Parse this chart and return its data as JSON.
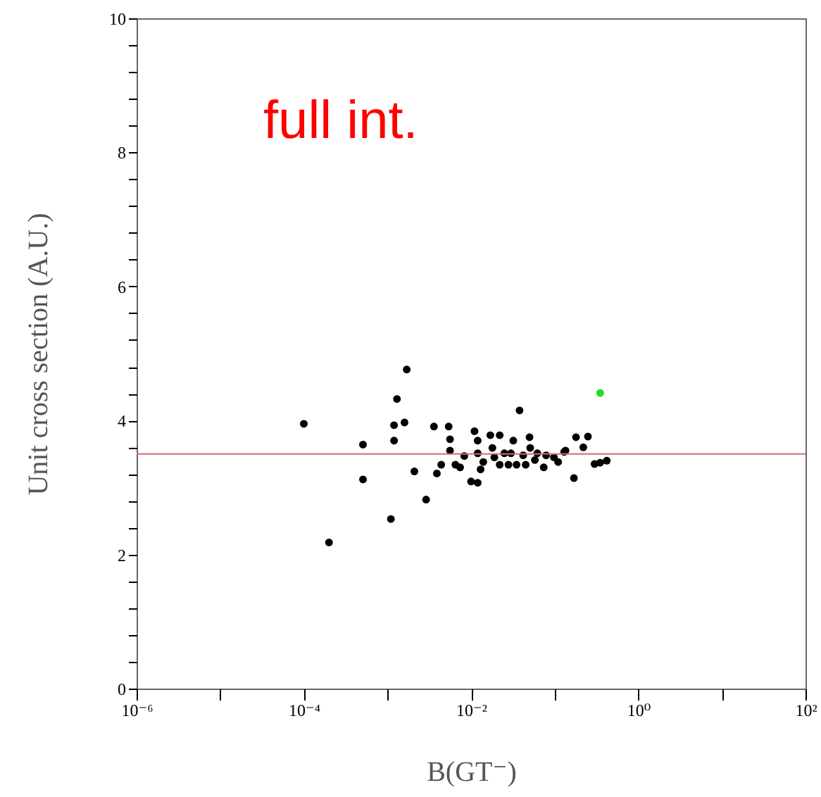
{
  "chart_data": {
    "type": "scatter",
    "xlabel": "B(GT⁻)",
    "ylabel": "Unit cross section (A.U.)",
    "annotations": [
      "full int."
    ],
    "log": "x",
    "xlim": [
      1e-06,
      100
    ],
    "ylim": [
      0,
      10
    ],
    "xticks": [
      {
        "value": 1e-06,
        "label": "10⁻⁶"
      },
      {
        "value": 1e-05,
        "label": null
      },
      {
        "value": 0.0001,
        "label": "10⁻⁴"
      },
      {
        "value": 0.001,
        "label": null
      },
      {
        "value": 0.01,
        "label": "10⁻²"
      },
      {
        "value": 0.1,
        "label": null
      },
      {
        "value": 1,
        "label": "10⁰"
      },
      {
        "value": 10,
        "label": null
      },
      {
        "value": 100,
        "label": "10²"
      }
    ],
    "yticks": [
      0,
      {
        "value": 0.4,
        "label": null
      },
      {
        "value": 0.8,
        "label": null
      },
      {
        "value": 1.2,
        "label": null
      },
      {
        "value": 1.6,
        "label": null
      },
      2,
      {
        "value": 2.4,
        "label": null
      },
      {
        "value": 2.8,
        "label": null
      },
      {
        "value": 3.2,
        "label": null
      },
      {
        "value": 3.6,
        "label": null
      },
      4,
      {
        "value": 4.4,
        "label": null
      },
      {
        "value": 4.8,
        "label": null
      },
      {
        "value": 5.2,
        "label": null
      },
      {
        "value": 5.6,
        "label": null
      },
      6,
      {
        "value": 6.4,
        "label": null
      },
      {
        "value": 6.8,
        "label": null
      },
      {
        "value": 7.2,
        "label": null
      },
      {
        "value": 7.6,
        "label": null
      },
      8,
      {
        "value": 8.4,
        "label": null
      },
      {
        "value": 8.8,
        "label": null
      },
      {
        "value": 9.2,
        "label": null
      },
      {
        "value": 9.6,
        "label": null
      },
      10
    ],
    "grid": false,
    "marker": "circle",
    "ref_lines": [
      {
        "axis": "y",
        "value": 3.5,
        "color": "#d96a6a"
      }
    ],
    "series": [
      {
        "color": "#000000",
        "x": [
          0.0001,
          0.0002,
          0.00051,
          0.00051,
          0.0011,
          0.0012,
          0.0012,
          0.0013,
          0.0016,
          0.0017,
          0.0021,
          0.0029,
          0.0036,
          0.0039,
          0.0044,
          0.0054,
          0.0056,
          0.0056,
          0.0065,
          0.0074,
          0.0083,
          0.01,
          0.012,
          0.011,
          0.012,
          0.012,
          0.013,
          0.014,
          0.017,
          0.018,
          0.019,
          0.022,
          0.022,
          0.025,
          0.028,
          0.03,
          0.032,
          0.035,
          0.038,
          0.042,
          0.045,
          0.05,
          0.051,
          0.058,
          0.062,
          0.074,
          0.079,
          0.098,
          0.11,
          0.13,
          0.135,
          0.17,
          0.18,
          0.22,
          0.25,
          0.3,
          0.35,
          0.42
        ],
        "values": [
          3.95,
          2.18,
          3.64,
          3.12,
          2.53,
          3.93,
          3.7,
          4.32,
          3.97,
          4.76,
          3.24,
          2.82,
          3.91,
          3.21,
          3.34,
          3.91,
          3.72,
          3.55,
          3.34,
          3.3,
          3.47,
          3.09,
          3.07,
          3.84,
          3.7,
          3.51,
          3.27,
          3.38,
          3.78,
          3.59,
          3.45,
          3.78,
          3.34,
          3.51,
          3.34,
          3.51,
          3.7,
          3.34,
          4.15,
          3.48,
          3.34,
          3.75,
          3.59,
          3.41,
          3.51,
          3.3,
          3.48,
          3.45,
          3.38,
          3.53,
          3.55,
          3.14,
          3.75,
          3.6,
          3.76,
          3.35,
          3.37,
          3.4
        ]
      },
      {
        "color": "#22dd22",
        "x": [
          0.35
        ],
        "values": [
          4.41
        ]
      }
    ]
  }
}
